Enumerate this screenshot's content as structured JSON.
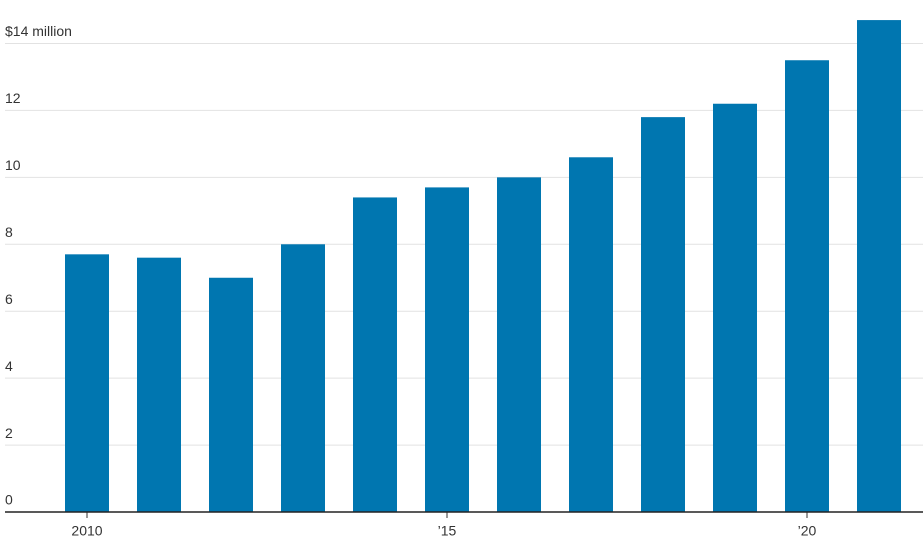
{
  "chart_data": {
    "type": "bar",
    "categories": [
      "2010",
      null,
      null,
      null,
      null,
      "’15",
      null,
      null,
      null,
      null,
      "’20",
      null
    ],
    "values": [
      7.7,
      7.6,
      7.0,
      8.0,
      9.4,
      9.7,
      10.0,
      10.6,
      11.8,
      12.2,
      13.5,
      14.7
    ],
    "color": "#0076b0",
    "ylim": [
      0,
      15.3
    ],
    "yticks": [
      0,
      2,
      4,
      6,
      8,
      10,
      12,
      {
        "value": 14,
        "label": "$14 million"
      }
    ],
    "grid": true
  }
}
